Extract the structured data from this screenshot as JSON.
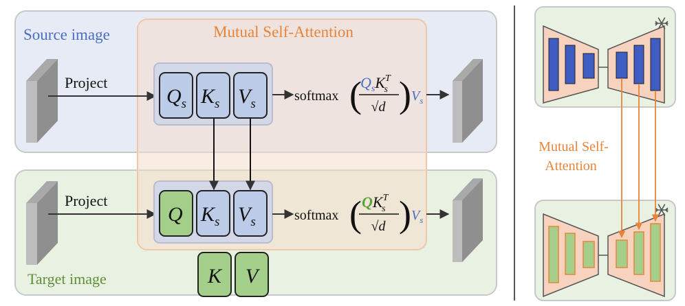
{
  "source_panel": {
    "label": "Source image",
    "label_color": "#4a6ec1"
  },
  "target_panel": {
    "label": "Target image",
    "label_color": "#5e8f36"
  },
  "attention_panel": {
    "label": "Mutual Self-Attention",
    "label_color": "#e8843a"
  },
  "source_row": {
    "project_label": "Project",
    "q": {
      "base": "Q",
      "sub": "s"
    },
    "k": {
      "base": "K",
      "sub": "s"
    },
    "v": {
      "base": "V",
      "sub": "s"
    },
    "formula": {
      "fn": "softmax",
      "num_q": "Q",
      "num_q_sub": "s",
      "num_k": "K",
      "num_k_sub": "s",
      "num_k_sup": "T",
      "den": "√d",
      "v": "V",
      "v_sub": "s"
    }
  },
  "target_row": {
    "project_label": "Project",
    "q": {
      "base": "Q"
    },
    "k": {
      "base": "K",
      "sub": "s"
    },
    "v": {
      "base": "V",
      "sub": "s"
    },
    "extra_k": "K",
    "extra_v": "V",
    "formula": {
      "fn": "softmax",
      "num_q": "Q",
      "num_k": "K",
      "num_k_sub": "s",
      "num_k_sup": "T",
      "den": "√d",
      "v": "V",
      "v_sub": "s"
    }
  },
  "unet_side": {
    "label_line1": "Mutual Self-",
    "label_line2": "Attention",
    "label_color": "#e8843a",
    "frozen_icon": "snowflake-icon"
  },
  "colors": {
    "source_bg": "#e6ebf5",
    "target_bg": "#e9f1e2",
    "attention_bg": "#f8e6d8",
    "blue_token": "#bccbe8",
    "green_token": "#a3cf8a",
    "orange": "#e8843a",
    "blue_math": "#4a6ec1",
    "green_math": "#5aa33a",
    "unet_bar_blue": "#3f5cc3",
    "unet_bar_green": "#a3cf8a",
    "unet_trap": "#f6d2bf"
  }
}
